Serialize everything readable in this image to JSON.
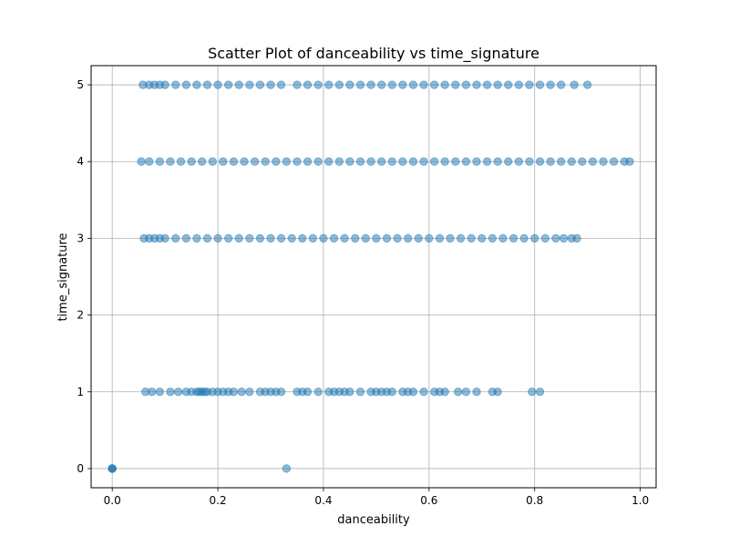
{
  "chart_data": {
    "type": "scatter",
    "title": "Scatter Plot of danceability vs time_signature",
    "xlabel": "danceability",
    "ylabel": "time_signature",
    "xlim": [
      -0.04,
      1.03
    ],
    "ylim": [
      -0.25,
      5.25
    ],
    "xticks": [
      0.0,
      0.2,
      0.4,
      0.6,
      0.8,
      1.0
    ],
    "xtick_labels": [
      "0.0",
      "0.2",
      "0.4",
      "0.6",
      "0.8",
      "1.0"
    ],
    "yticks": [
      0,
      1,
      2,
      3,
      4,
      5
    ],
    "ytick_labels": [
      "0",
      "1",
      "2",
      "3",
      "4",
      "5"
    ],
    "grid": true,
    "marker_color": "#1f77b4",
    "marker_alpha": 0.5,
    "series": [
      {
        "points": [
          {
            "x": 0.0,
            "y": 0
          },
          {
            "x": 0.0,
            "y": 0
          },
          {
            "x": 0.0,
            "y": 0
          },
          {
            "x": 0.33,
            "y": 0
          },
          {
            "x": 0.063,
            "y": 1
          },
          {
            "x": 0.075,
            "y": 1
          },
          {
            "x": 0.09,
            "y": 1
          },
          {
            "x": 0.11,
            "y": 1
          },
          {
            "x": 0.125,
            "y": 1
          },
          {
            "x": 0.14,
            "y": 1
          },
          {
            "x": 0.15,
            "y": 1
          },
          {
            "x": 0.16,
            "y": 1
          },
          {
            "x": 0.165,
            "y": 1
          },
          {
            "x": 0.17,
            "y": 1
          },
          {
            "x": 0.175,
            "y": 1
          },
          {
            "x": 0.18,
            "y": 1
          },
          {
            "x": 0.19,
            "y": 1
          },
          {
            "x": 0.2,
            "y": 1
          },
          {
            "x": 0.21,
            "y": 1
          },
          {
            "x": 0.22,
            "y": 1
          },
          {
            "x": 0.23,
            "y": 1
          },
          {
            "x": 0.245,
            "y": 1
          },
          {
            "x": 0.26,
            "y": 1
          },
          {
            "x": 0.28,
            "y": 1
          },
          {
            "x": 0.29,
            "y": 1
          },
          {
            "x": 0.3,
            "y": 1
          },
          {
            "x": 0.31,
            "y": 1
          },
          {
            "x": 0.32,
            "y": 1
          },
          {
            "x": 0.35,
            "y": 1
          },
          {
            "x": 0.36,
            "y": 1
          },
          {
            "x": 0.37,
            "y": 1
          },
          {
            "x": 0.39,
            "y": 1
          },
          {
            "x": 0.41,
            "y": 1
          },
          {
            "x": 0.42,
            "y": 1
          },
          {
            "x": 0.43,
            "y": 1
          },
          {
            "x": 0.44,
            "y": 1
          },
          {
            "x": 0.45,
            "y": 1
          },
          {
            "x": 0.47,
            "y": 1
          },
          {
            "x": 0.49,
            "y": 1
          },
          {
            "x": 0.5,
            "y": 1
          },
          {
            "x": 0.51,
            "y": 1
          },
          {
            "x": 0.52,
            "y": 1
          },
          {
            "x": 0.53,
            "y": 1
          },
          {
            "x": 0.55,
            "y": 1
          },
          {
            "x": 0.56,
            "y": 1
          },
          {
            "x": 0.57,
            "y": 1
          },
          {
            "x": 0.59,
            "y": 1
          },
          {
            "x": 0.61,
            "y": 1
          },
          {
            "x": 0.62,
            "y": 1
          },
          {
            "x": 0.63,
            "y": 1
          },
          {
            "x": 0.655,
            "y": 1
          },
          {
            "x": 0.67,
            "y": 1
          },
          {
            "x": 0.69,
            "y": 1
          },
          {
            "x": 0.72,
            "y": 1
          },
          {
            "x": 0.73,
            "y": 1
          },
          {
            "x": 0.795,
            "y": 1
          },
          {
            "x": 0.81,
            "y": 1
          },
          {
            "x": 0.06,
            "y": 3
          },
          {
            "x": 0.07,
            "y": 3
          },
          {
            "x": 0.08,
            "y": 3
          },
          {
            "x": 0.09,
            "y": 3
          },
          {
            "x": 0.1,
            "y": 3
          },
          {
            "x": 0.12,
            "y": 3
          },
          {
            "x": 0.14,
            "y": 3
          },
          {
            "x": 0.16,
            "y": 3
          },
          {
            "x": 0.18,
            "y": 3
          },
          {
            "x": 0.2,
            "y": 3
          },
          {
            "x": 0.22,
            "y": 3
          },
          {
            "x": 0.24,
            "y": 3
          },
          {
            "x": 0.26,
            "y": 3
          },
          {
            "x": 0.28,
            "y": 3
          },
          {
            "x": 0.3,
            "y": 3
          },
          {
            "x": 0.32,
            "y": 3
          },
          {
            "x": 0.34,
            "y": 3
          },
          {
            "x": 0.36,
            "y": 3
          },
          {
            "x": 0.38,
            "y": 3
          },
          {
            "x": 0.4,
            "y": 3
          },
          {
            "x": 0.42,
            "y": 3
          },
          {
            "x": 0.44,
            "y": 3
          },
          {
            "x": 0.46,
            "y": 3
          },
          {
            "x": 0.48,
            "y": 3
          },
          {
            "x": 0.5,
            "y": 3
          },
          {
            "x": 0.52,
            "y": 3
          },
          {
            "x": 0.54,
            "y": 3
          },
          {
            "x": 0.56,
            "y": 3
          },
          {
            "x": 0.58,
            "y": 3
          },
          {
            "x": 0.6,
            "y": 3
          },
          {
            "x": 0.62,
            "y": 3
          },
          {
            "x": 0.64,
            "y": 3
          },
          {
            "x": 0.66,
            "y": 3
          },
          {
            "x": 0.68,
            "y": 3
          },
          {
            "x": 0.7,
            "y": 3
          },
          {
            "x": 0.72,
            "y": 3
          },
          {
            "x": 0.74,
            "y": 3
          },
          {
            "x": 0.76,
            "y": 3
          },
          {
            "x": 0.78,
            "y": 3
          },
          {
            "x": 0.8,
            "y": 3
          },
          {
            "x": 0.82,
            "y": 3
          },
          {
            "x": 0.84,
            "y": 3
          },
          {
            "x": 0.855,
            "y": 3
          },
          {
            "x": 0.87,
            "y": 3
          },
          {
            "x": 0.88,
            "y": 3
          },
          {
            "x": 0.055,
            "y": 4
          },
          {
            "x": 0.07,
            "y": 4
          },
          {
            "x": 0.09,
            "y": 4
          },
          {
            "x": 0.11,
            "y": 4
          },
          {
            "x": 0.13,
            "y": 4
          },
          {
            "x": 0.15,
            "y": 4
          },
          {
            "x": 0.17,
            "y": 4
          },
          {
            "x": 0.19,
            "y": 4
          },
          {
            "x": 0.21,
            "y": 4
          },
          {
            "x": 0.23,
            "y": 4
          },
          {
            "x": 0.25,
            "y": 4
          },
          {
            "x": 0.27,
            "y": 4
          },
          {
            "x": 0.29,
            "y": 4
          },
          {
            "x": 0.31,
            "y": 4
          },
          {
            "x": 0.33,
            "y": 4
          },
          {
            "x": 0.35,
            "y": 4
          },
          {
            "x": 0.37,
            "y": 4
          },
          {
            "x": 0.39,
            "y": 4
          },
          {
            "x": 0.41,
            "y": 4
          },
          {
            "x": 0.43,
            "y": 4
          },
          {
            "x": 0.45,
            "y": 4
          },
          {
            "x": 0.47,
            "y": 4
          },
          {
            "x": 0.49,
            "y": 4
          },
          {
            "x": 0.51,
            "y": 4
          },
          {
            "x": 0.53,
            "y": 4
          },
          {
            "x": 0.55,
            "y": 4
          },
          {
            "x": 0.57,
            "y": 4
          },
          {
            "x": 0.59,
            "y": 4
          },
          {
            "x": 0.61,
            "y": 4
          },
          {
            "x": 0.63,
            "y": 4
          },
          {
            "x": 0.65,
            "y": 4
          },
          {
            "x": 0.67,
            "y": 4
          },
          {
            "x": 0.69,
            "y": 4
          },
          {
            "x": 0.71,
            "y": 4
          },
          {
            "x": 0.73,
            "y": 4
          },
          {
            "x": 0.75,
            "y": 4
          },
          {
            "x": 0.77,
            "y": 4
          },
          {
            "x": 0.79,
            "y": 4
          },
          {
            "x": 0.81,
            "y": 4
          },
          {
            "x": 0.83,
            "y": 4
          },
          {
            "x": 0.85,
            "y": 4
          },
          {
            "x": 0.87,
            "y": 4
          },
          {
            "x": 0.89,
            "y": 4
          },
          {
            "x": 0.91,
            "y": 4
          },
          {
            "x": 0.93,
            "y": 4
          },
          {
            "x": 0.95,
            "y": 4
          },
          {
            "x": 0.97,
            "y": 4
          },
          {
            "x": 0.98,
            "y": 4
          },
          {
            "x": 0.058,
            "y": 5
          },
          {
            "x": 0.07,
            "y": 5
          },
          {
            "x": 0.08,
            "y": 5
          },
          {
            "x": 0.09,
            "y": 5
          },
          {
            "x": 0.1,
            "y": 5
          },
          {
            "x": 0.12,
            "y": 5
          },
          {
            "x": 0.14,
            "y": 5
          },
          {
            "x": 0.16,
            "y": 5
          },
          {
            "x": 0.18,
            "y": 5
          },
          {
            "x": 0.2,
            "y": 5
          },
          {
            "x": 0.22,
            "y": 5
          },
          {
            "x": 0.24,
            "y": 5
          },
          {
            "x": 0.26,
            "y": 5
          },
          {
            "x": 0.28,
            "y": 5
          },
          {
            "x": 0.3,
            "y": 5
          },
          {
            "x": 0.32,
            "y": 5
          },
          {
            "x": 0.35,
            "y": 5
          },
          {
            "x": 0.37,
            "y": 5
          },
          {
            "x": 0.39,
            "y": 5
          },
          {
            "x": 0.41,
            "y": 5
          },
          {
            "x": 0.43,
            "y": 5
          },
          {
            "x": 0.45,
            "y": 5
          },
          {
            "x": 0.47,
            "y": 5
          },
          {
            "x": 0.49,
            "y": 5
          },
          {
            "x": 0.51,
            "y": 5
          },
          {
            "x": 0.53,
            "y": 5
          },
          {
            "x": 0.55,
            "y": 5
          },
          {
            "x": 0.57,
            "y": 5
          },
          {
            "x": 0.59,
            "y": 5
          },
          {
            "x": 0.61,
            "y": 5
          },
          {
            "x": 0.63,
            "y": 5
          },
          {
            "x": 0.65,
            "y": 5
          },
          {
            "x": 0.67,
            "y": 5
          },
          {
            "x": 0.69,
            "y": 5
          },
          {
            "x": 0.71,
            "y": 5
          },
          {
            "x": 0.73,
            "y": 5
          },
          {
            "x": 0.75,
            "y": 5
          },
          {
            "x": 0.77,
            "y": 5
          },
          {
            "x": 0.79,
            "y": 5
          },
          {
            "x": 0.81,
            "y": 5
          },
          {
            "x": 0.83,
            "y": 5
          },
          {
            "x": 0.85,
            "y": 5
          },
          {
            "x": 0.875,
            "y": 5
          },
          {
            "x": 0.9,
            "y": 5
          }
        ]
      }
    ]
  }
}
